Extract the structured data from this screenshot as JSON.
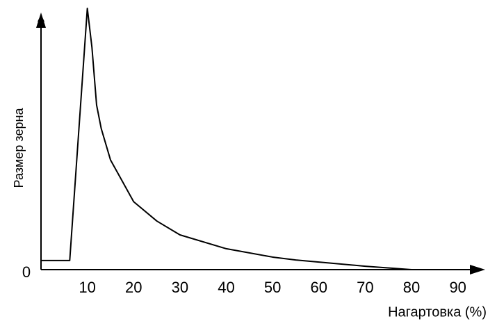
{
  "chart_data": {
    "type": "line",
    "y_label": "Размер зерна",
    "x_label": "Нагартовка (%)",
    "x": [
      0,
      6.2,
      10,
      11,
      12,
      13,
      15,
      20,
      25,
      30,
      40,
      50,
      55,
      60,
      70,
      80
    ],
    "series": [
      {
        "name": "Размер зерна",
        "color": "#000000",
        "values": [
          3.5,
          3.5,
          100,
          85,
          63,
          54,
          42,
          26,
          18.6,
          13.3,
          8,
          4.8,
          3.7,
          2.9,
          1.3,
          0
        ]
      }
    ],
    "xlim": [
      0,
      95
    ],
    "ylim": [
      0,
      100
    ],
    "xticks": [
      10,
      20,
      30,
      40,
      50,
      60,
      70,
      80,
      90
    ],
    "yticks": [
      0
    ],
    "grid": false
  }
}
